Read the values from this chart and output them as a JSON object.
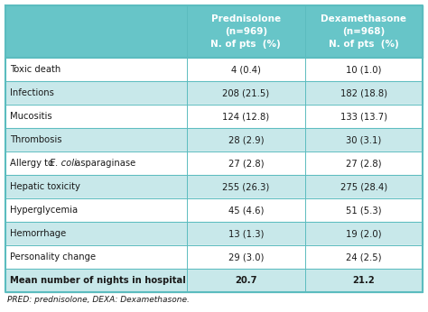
{
  "header_bg": "#67C5C8",
  "header_text_color": "#FFFFFF",
  "row_bg_light": "#C8E8EA",
  "row_bg_white": "#FFFFFF",
  "text_color": "#1a1a1a",
  "border_color": "#5BBCBF",
  "col1_header": "Prednisolone\n(n=969)\nN. of pts  (%)",
  "col2_header": "Dexamethasone\n(n=968)\nN. of pts  (%)",
  "rows": [
    {
      "label": "Toxic death",
      "label_ecoli": false,
      "pred": "4 (0.4)",
      "dexa": "10 (1.0)",
      "shaded": false,
      "bold": false
    },
    {
      "label": "Infections",
      "label_ecoli": false,
      "pred": "208 (21.5)",
      "dexa": "182 (18.8)",
      "shaded": true,
      "bold": false
    },
    {
      "label": "Mucositis",
      "label_ecoli": false,
      "pred": "124 (12.8)",
      "dexa": "133 (13.7)",
      "shaded": false,
      "bold": false
    },
    {
      "label": "Thrombosis",
      "label_ecoli": false,
      "pred": "28 (2.9)",
      "dexa": "30 (3.1)",
      "shaded": true,
      "bold": false
    },
    {
      "label": "Allergy to E. coli asparaginase",
      "label_ecoli": true,
      "pred": "27 (2.8)",
      "dexa": "27 (2.8)",
      "shaded": false,
      "bold": false
    },
    {
      "label": "Hepatic toxicity",
      "label_ecoli": false,
      "pred": "255 (26.3)",
      "dexa": "275 (28.4)",
      "shaded": true,
      "bold": false
    },
    {
      "label": "Hyperglycemia",
      "label_ecoli": false,
      "pred": "45 (4.6)",
      "dexa": "51 (5.3)",
      "shaded": false,
      "bold": false
    },
    {
      "label": "Hemorrhage",
      "label_ecoli": false,
      "pred": "13 (1.3)",
      "dexa": "19 (2.0)",
      "shaded": true,
      "bold": false
    },
    {
      "label": "Personality change",
      "label_ecoli": false,
      "pred": "29 (3.0)",
      "dexa": "24 (2.5)",
      "shaded": false,
      "bold": false
    },
    {
      "label": "Mean number of nights in hospital",
      "label_ecoli": false,
      "pred": "20.7",
      "dexa": "21.2",
      "shaded": true,
      "bold": true
    }
  ],
  "footnote": "PRED: prednisolone, DEXA: Dexamethasone.",
  "figwidth": 4.74,
  "figheight": 3.46,
  "dpi": 100
}
